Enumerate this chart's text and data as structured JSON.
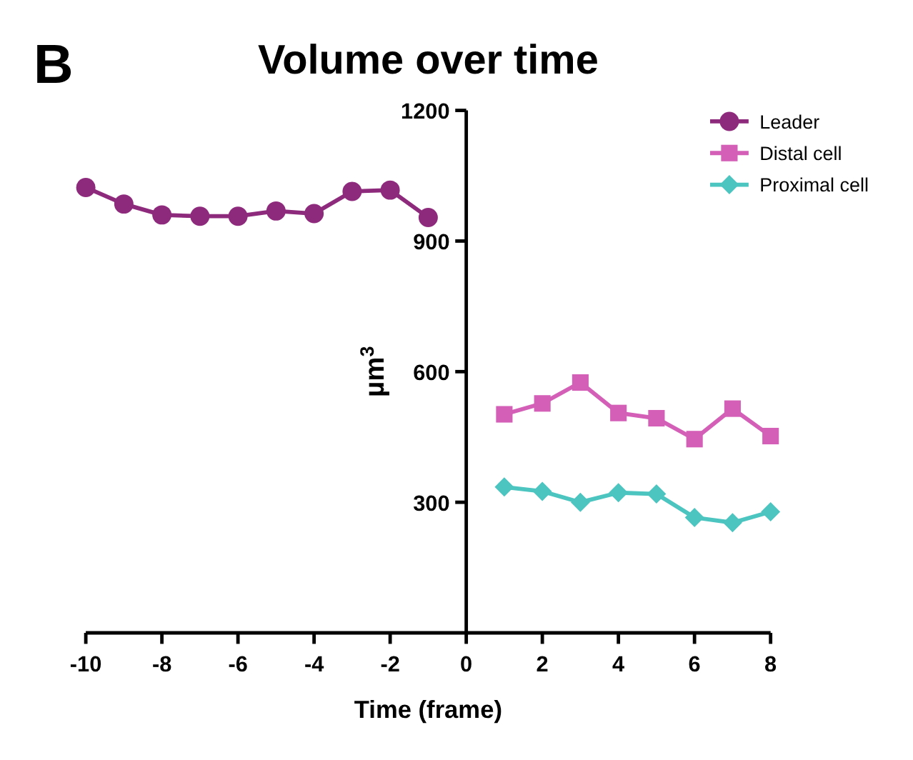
{
  "chart_data": {
    "type": "line",
    "title": "Volume over time",
    "xlabel": "Time (frame)",
    "ylabel": "µm$^{3}$",
    "annotations": [
      "B"
    ],
    "xlim": [
      -10,
      8
    ],
    "xticks": [
      -10,
      -8,
      -6,
      -4,
      -2,
      0,
      2,
      4,
      6,
      8
    ],
    "ylim": [
      0,
      1200
    ],
    "yticks": [
      300,
      600,
      900,
      1200
    ],
    "grid": false,
    "legend": "top right",
    "line_style": "solid",
    "series": [
      {
        "name": "Leader",
        "color": "#8e2a7c",
        "marker": "circle",
        "x": [
          -10,
          -9,
          -8,
          -7,
          -6,
          -5,
          -4,
          -3,
          -2,
          -1
        ],
        "values": [
          1023,
          985,
          960,
          957,
          957,
          969,
          963,
          1014,
          1017,
          954
        ]
      },
      {
        "name": "Distal cell",
        "color": "#d35fb7",
        "marker": "square",
        "x": [
          1,
          2,
          3,
          4,
          5,
          6,
          7,
          8
        ],
        "values": [
          502,
          527,
          575,
          505,
          493,
          445,
          515,
          452
        ]
      },
      {
        "name": "Proximal cell",
        "color": "#4cc4c0",
        "marker": "diamond",
        "x": [
          1,
          2,
          3,
          4,
          5,
          6,
          7,
          8
        ],
        "values": [
          335,
          325,
          300,
          322,
          319,
          265,
          253,
          278
        ]
      }
    ]
  }
}
